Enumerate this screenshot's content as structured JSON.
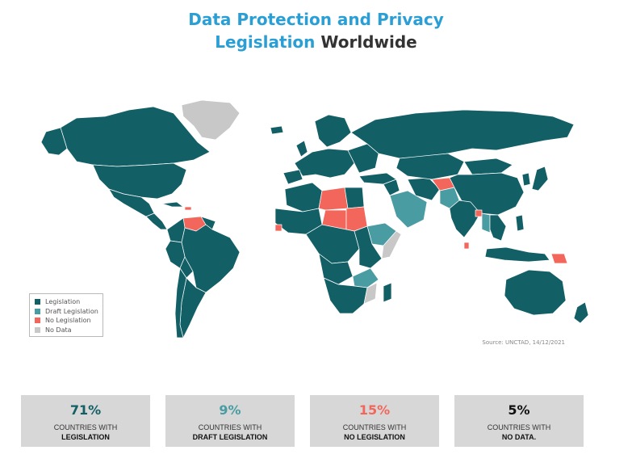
{
  "title": {
    "line1": "Data Protection and Privacy",
    "line2_accent": "Legislation",
    "line2_dark": "Worldwide"
  },
  "legend": {
    "items": [
      {
        "label": "Legislation",
        "color": "#125f66"
      },
      {
        "label": "Draft Legislation",
        "color": "#4a9ca3"
      },
      {
        "label": "No Legislation",
        "color": "#f2665b"
      },
      {
        "label": "No Data",
        "color": "#c8c8c8"
      }
    ]
  },
  "source": "Source: UNCTAD, 14/12/2021",
  "stats": [
    {
      "percent": "71%",
      "line1": "COUNTRIES WITH",
      "line2": "LEGISLATION",
      "color": "#125f66"
    },
    {
      "percent": "9%",
      "line1": "COUNTRIES WITH",
      "line2": "DRAFT LEGISLATION",
      "color": "#4a9ca3"
    },
    {
      "percent": "15%",
      "line1": "COUNTRIES WITH",
      "line2": "NO LEGISLATION",
      "color": "#f2665b"
    },
    {
      "percent": "5%",
      "line1": "COUNTRIES WITH",
      "line2": "NO DATA.",
      "color": "#111111"
    }
  ]
}
